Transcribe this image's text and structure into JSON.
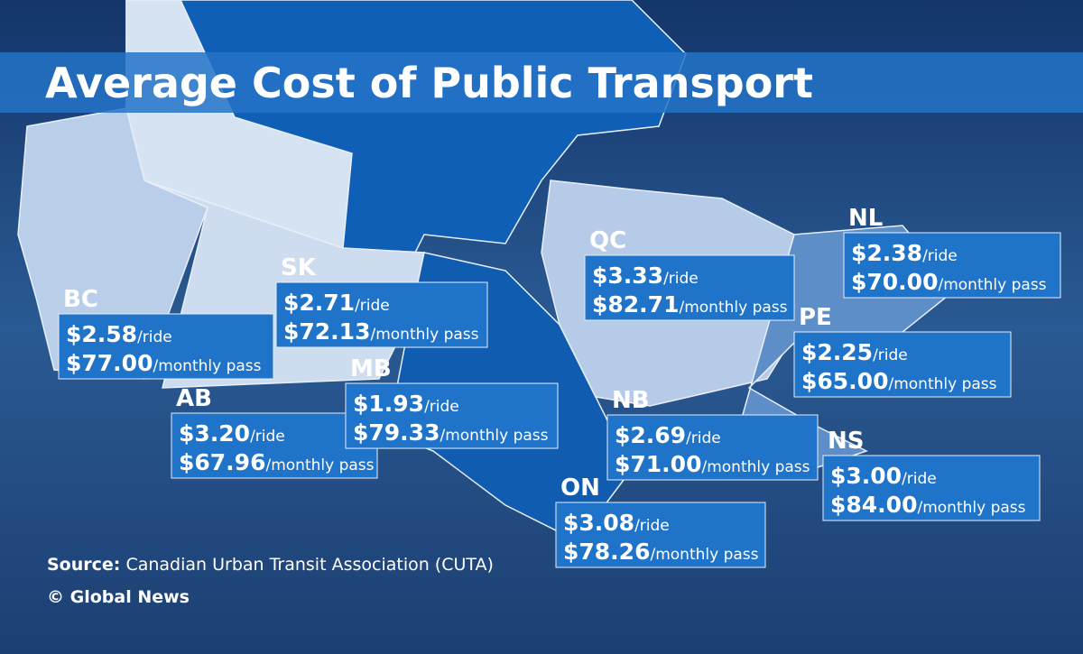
{
  "title": "Average Cost of Public Transport",
  "units": {
    "ride": "/ride",
    "monthly": "/monthly pass"
  },
  "provinces": [
    {
      "code": "BC",
      "ride": "$2.58",
      "monthly": "$77.00"
    },
    {
      "code": "AB",
      "ride": "$3.20",
      "monthly": "$67.96"
    },
    {
      "code": "SK",
      "ride": "$2.71",
      "monthly": "$72.13"
    },
    {
      "code": "MB",
      "ride": "$1.93",
      "monthly": "$79.33"
    },
    {
      "code": "QC",
      "ride": "$3.33",
      "monthly": "$82.71"
    },
    {
      "code": "NL",
      "ride": "$2.38",
      "monthly": "$70.00"
    },
    {
      "code": "PE",
      "ride": "$2.25",
      "monthly": "$65.00"
    },
    {
      "code": "NB",
      "ride": "$2.69",
      "monthly": "$71.00"
    },
    {
      "code": "NS",
      "ride": "$3.00",
      "monthly": "$84.00"
    },
    {
      "code": "ON",
      "ride": "$3.08",
      "monthly": "$78.26"
    }
  ],
  "source": {
    "label": "Source:",
    "text": "Canadian Urban Transit Association (CUTA)"
  },
  "credit": "© Global News"
}
